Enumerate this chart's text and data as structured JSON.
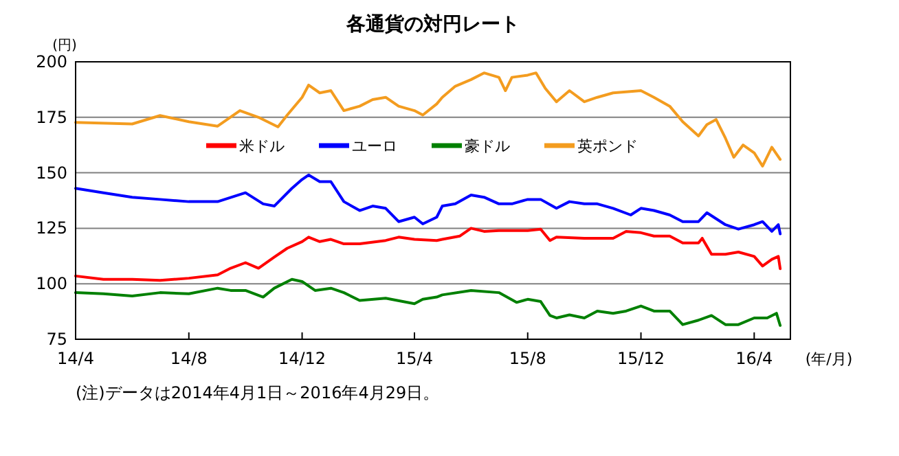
{
  "chart_data": {
    "type": "line",
    "title": "各通貨の対円レート",
    "ylabel": "(円)",
    "xlabel": "(年/月)",
    "xlim": [
      "2014-04-01",
      "2016-05-10"
    ],
    "ylim": [
      75,
      200
    ],
    "yticks": [
      75,
      100,
      125,
      150,
      175,
      200
    ],
    "xticks": [
      {
        "value": "2014-04-01",
        "label": "14/4"
      },
      {
        "value": "2014-08-01",
        "label": "14/8"
      },
      {
        "value": "2014-12-01",
        "label": "14/12"
      },
      {
        "value": "2015-04-01",
        "label": "15/4"
      },
      {
        "value": "2015-08-01",
        "label": "15/8"
      },
      {
        "value": "2015-12-01",
        "label": "15/12"
      },
      {
        "value": "2016-04-01",
        "label": "16/4"
      }
    ],
    "grid": "y",
    "legend": "top",
    "marker": "none",
    "line_style": "solid",
    "annotations": [
      "(注)データは2014年4月1日～2016年4月29日。"
    ],
    "series": [
      {
        "name": "米ドル",
        "color": "#ff0000",
        "x": [
          "2014-04-01",
          "2014-05-01",
          "2014-06-01",
          "2014-07-01",
          "2014-08-01",
          "2014-09-01",
          "2014-09-15",
          "2014-10-01",
          "2014-10-15",
          "2014-11-01",
          "2014-11-15",
          "2014-12-01",
          "2014-12-08",
          "2014-12-20",
          "2015-01-01",
          "2015-01-15",
          "2015-02-01",
          "2015-03-01",
          "2015-03-15",
          "2015-04-01",
          "2015-04-25",
          "2015-05-01",
          "2015-05-20",
          "2015-06-01",
          "2015-06-15",
          "2015-07-01",
          "2015-07-15",
          "2015-08-01",
          "2015-08-15",
          "2015-08-25",
          "2015-09-01",
          "2015-10-01",
          "2015-11-01",
          "2015-11-15",
          "2015-12-01",
          "2015-12-15",
          "2016-01-01",
          "2016-01-15",
          "2016-02-01",
          "2016-02-05",
          "2016-02-15",
          "2016-03-01",
          "2016-03-15",
          "2016-04-01",
          "2016-04-10",
          "2016-04-20",
          "2016-04-27",
          "2016-04-29"
        ],
        "values": [
          103.5,
          102,
          102,
          101.5,
          102.5,
          104,
          107,
          109.5,
          107,
          112,
          116,
          119,
          121,
          119,
          120,
          118,
          118,
          119.5,
          121,
          120,
          119.5,
          120,
          121.5,
          125,
          123.6,
          124,
          124,
          124,
          124.6,
          119.5,
          121,
          120.5,
          120.5,
          123.6,
          123,
          121.5,
          121.5,
          118.4,
          118.4,
          120.5,
          113.3,
          113.3,
          114.3,
          112.3,
          108,
          111,
          112.3,
          106.8
        ]
      },
      {
        "name": "ユーロ",
        "color": "#0000ff",
        "x": [
          "2014-04-01",
          "2014-05-01",
          "2014-06-01",
          "2014-07-01",
          "2014-08-01",
          "2014-09-01",
          "2014-10-01",
          "2014-10-20",
          "2014-11-01",
          "2014-11-20",
          "2014-12-01",
          "2014-12-08",
          "2014-12-20",
          "2015-01-01",
          "2015-01-15",
          "2015-02-01",
          "2015-02-15",
          "2015-03-01",
          "2015-03-15",
          "2015-04-01",
          "2015-04-10",
          "2015-04-25",
          "2015-05-01",
          "2015-05-15",
          "2015-06-01",
          "2015-06-15",
          "2015-07-01",
          "2015-07-15",
          "2015-08-01",
          "2015-08-15",
          "2015-09-01",
          "2015-09-15",
          "2015-10-01",
          "2015-10-15",
          "2015-11-01",
          "2015-11-20",
          "2015-12-01",
          "2015-12-15",
          "2016-01-01",
          "2016-01-15",
          "2016-02-01",
          "2016-02-10",
          "2016-03-01",
          "2016-03-15",
          "2016-04-01",
          "2016-04-10",
          "2016-04-20",
          "2016-04-27",
          "2016-04-29"
        ],
        "values": [
          143,
          141,
          139,
          138,
          137,
          137,
          141,
          136,
          135,
          143,
          147,
          149,
          146,
          146,
          137,
          133,
          135,
          134,
          128,
          130,
          127,
          130,
          135,
          136,
          140,
          139,
          136,
          136,
          138,
          138,
          134,
          137,
          136,
          136,
          134,
          131,
          134,
          133,
          131,
          128,
          128,
          132,
          126.6,
          124.6,
          126.6,
          128,
          123.6,
          126.6,
          122.5
        ]
      },
      {
        "name": "豪ドル",
        "color": "#008000",
        "x": [
          "2014-04-01",
          "2014-05-01",
          "2014-06-01",
          "2014-07-01",
          "2014-08-01",
          "2014-09-01",
          "2014-09-15",
          "2014-10-01",
          "2014-10-20",
          "2014-11-01",
          "2014-11-20",
          "2014-12-01",
          "2014-12-15",
          "2015-01-01",
          "2015-01-15",
          "2015-02-01",
          "2015-03-01",
          "2015-04-01",
          "2015-04-10",
          "2015-04-25",
          "2015-05-01",
          "2015-06-01",
          "2015-07-01",
          "2015-07-20",
          "2015-08-01",
          "2015-08-15",
          "2015-08-25",
          "2015-09-01",
          "2015-09-15",
          "2015-10-01",
          "2015-10-15",
          "2015-11-01",
          "2015-11-15",
          "2015-12-01",
          "2015-12-15",
          "2016-01-01",
          "2016-01-15",
          "2016-02-01",
          "2016-02-15",
          "2016-03-01",
          "2016-03-15",
          "2016-04-01",
          "2016-04-15",
          "2016-04-25",
          "2016-04-29"
        ],
        "values": [
          96,
          95.5,
          94.5,
          96,
          95.5,
          98,
          97,
          97,
          94,
          98,
          102,
          101,
          97,
          98,
          96,
          92.5,
          93.5,
          91,
          93,
          94,
          95,
          97,
          96,
          91.6,
          93,
          92,
          85.7,
          84.6,
          86,
          84.6,
          87.7,
          86.7,
          87.7,
          90,
          87.7,
          87.7,
          81.6,
          83.6,
          85.7,
          81.6,
          81.6,
          84.6,
          84.6,
          86.7,
          81.2
        ]
      },
      {
        "name": "英ポンド",
        "color": "#f39c1f",
        "x": [
          "2014-04-01",
          "2014-06-01",
          "2014-07-01",
          "2014-08-01",
          "2014-09-01",
          "2014-09-25",
          "2014-10-15",
          "2014-11-05",
          "2014-11-15",
          "2014-12-01",
          "2014-12-08",
          "2014-12-20",
          "2015-01-01",
          "2015-01-15",
          "2015-02-01",
          "2015-02-15",
          "2015-03-01",
          "2015-03-15",
          "2015-04-01",
          "2015-04-10",
          "2015-04-25",
          "2015-05-01",
          "2015-05-15",
          "2015-06-01",
          "2015-06-15",
          "2015-07-01",
          "2015-07-08",
          "2015-07-15",
          "2015-08-01",
          "2015-08-10",
          "2015-08-20",
          "2015-09-01",
          "2015-09-15",
          "2015-10-01",
          "2015-10-15",
          "2015-11-01",
          "2015-12-01",
          "2015-12-15",
          "2016-01-01",
          "2016-01-15",
          "2016-02-01",
          "2016-02-10",
          "2016-02-20",
          "2016-03-01",
          "2016-03-10",
          "2016-03-20",
          "2016-04-01",
          "2016-04-10",
          "2016-04-20",
          "2016-04-29"
        ],
        "values": [
          172.7,
          172,
          175.8,
          173,
          171,
          178,
          175,
          170.7,
          176,
          184,
          189.5,
          186,
          187,
          178,
          180,
          183,
          184,
          180,
          178,
          176,
          181,
          184,
          189,
          192,
          195,
          193,
          187,
          193,
          194,
          195,
          188,
          182,
          187,
          182,
          184,
          186,
          187,
          184,
          180,
          173,
          166.6,
          171.7,
          174,
          165.6,
          157,
          162.5,
          159,
          153,
          161.5,
          156
        ]
      }
    ]
  }
}
